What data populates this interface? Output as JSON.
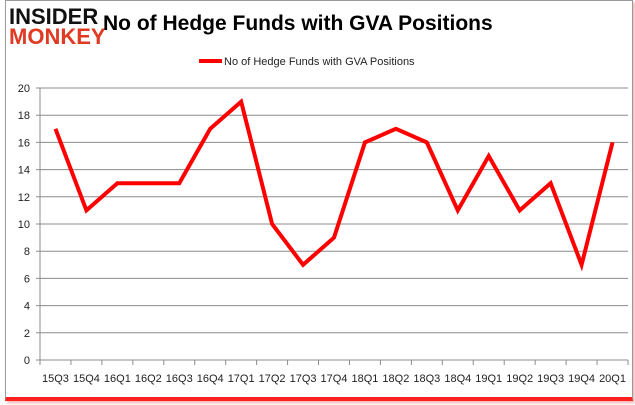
{
  "logo": {
    "line1": "INSIDER",
    "line2": "MONKEY"
  },
  "colors": {
    "series": "#ff0000",
    "grid": "#8c8c8c",
    "logo_red": "#e03a22"
  },
  "chart_data": {
    "type": "line",
    "title": "No of Hedge Funds with GVA Positions",
    "xlabel": "",
    "ylabel": "",
    "categories": [
      "15Q3",
      "15Q4",
      "16Q1",
      "16Q2",
      "16Q3",
      "16Q4",
      "17Q1",
      "17Q2",
      "17Q3",
      "17Q4",
      "18Q1",
      "18Q2",
      "18Q3",
      "18Q4",
      "19Q1",
      "19Q2",
      "19Q3",
      "19Q4",
      "20Q1"
    ],
    "series": [
      {
        "name": "No of Hedge Funds with GVA Positions",
        "values": [
          17,
          11,
          13,
          13,
          13,
          17,
          19,
          10,
          7,
          9,
          16,
          17,
          16,
          11,
          15,
          11,
          13,
          7,
          16
        ]
      }
    ],
    "ylim": [
      0,
      20
    ],
    "yticks": [
      0,
      2,
      4,
      6,
      8,
      10,
      12,
      14,
      16,
      18,
      20
    ],
    "grid": true,
    "legend": "top"
  }
}
